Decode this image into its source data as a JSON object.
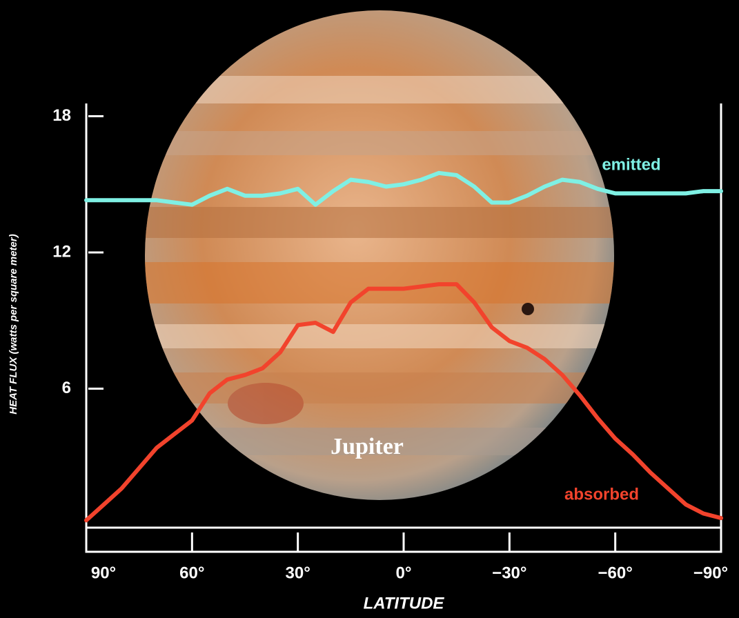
{
  "chart_data": {
    "type": "line",
    "ylabel": "HEAT FLUX (watts per square meter)",
    "xlabel": "LATITUDE",
    "annotation": "Jupiter",
    "x": [
      90,
      85,
      80,
      75,
      70,
      65,
      60,
      55,
      50,
      45,
      40,
      35,
      30,
      25,
      20,
      15,
      10,
      5,
      0,
      -5,
      -10,
      -15,
      -20,
      -25,
      -30,
      -35,
      -40,
      -45,
      -50,
      -55,
      -60,
      -65,
      -70,
      -75,
      -80,
      -85,
      -90
    ],
    "series": [
      {
        "name": "emitted",
        "color": "#7ff0e4",
        "values": [
          14.3,
          14.3,
          14.3,
          14.3,
          14.3,
          14.2,
          14.1,
          14.5,
          14.8,
          14.5,
          14.5,
          14.6,
          14.8,
          14.1,
          14.7,
          15.2,
          15.1,
          14.9,
          15.0,
          15.2,
          15.5,
          15.4,
          14.9,
          14.2,
          14.2,
          14.5,
          14.9,
          15.2,
          15.1,
          14.8,
          14.6,
          14.6,
          14.6,
          14.6,
          14.6,
          14.7,
          14.7
        ]
      },
      {
        "name": "absorbed",
        "color": "#f2432c",
        "values": [
          0.2,
          0.9,
          1.6,
          2.5,
          3.4,
          4.0,
          4.6,
          5.8,
          6.4,
          6.6,
          6.9,
          7.6,
          8.8,
          8.9,
          8.5,
          9.8,
          10.4,
          10.4,
          10.4,
          10.5,
          10.6,
          10.6,
          9.8,
          8.7,
          8.1,
          7.8,
          7.3,
          6.6,
          5.7,
          4.7,
          3.8,
          3.1,
          2.3,
          1.6,
          0.9,
          0.5,
          0.3
        ]
      }
    ],
    "xlim": [
      90,
      -90
    ],
    "xticks": [
      {
        "value": 90,
        "label": "90°"
      },
      {
        "value": 60,
        "label": "60°"
      },
      {
        "value": 30,
        "label": "30°"
      },
      {
        "value": 0,
        "label": "0°"
      },
      {
        "value": -30,
        "label": "−30°"
      },
      {
        "value": -60,
        "label": "−60°"
      },
      {
        "value": -90,
        "label": "−90°"
      }
    ],
    "ylim": [
      0,
      18.5
    ],
    "yticks": [
      6,
      12,
      18
    ]
  }
}
